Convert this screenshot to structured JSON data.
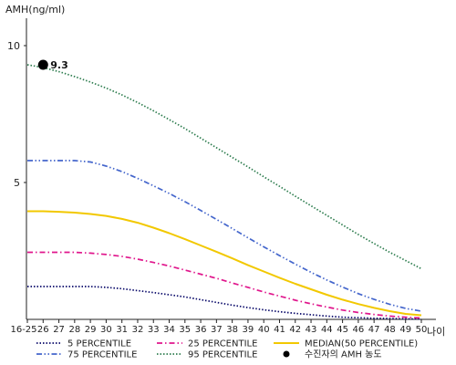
{
  "chart_data": {
    "type": "line",
    "ylabel": "AMH(ng/ml)",
    "xlabel": "나이",
    "ylim": [
      0,
      11
    ],
    "yticks": [
      5,
      10
    ],
    "grid": false,
    "legend_position": "bottom",
    "categories": [
      "16-25",
      "26",
      "27",
      "28",
      "29",
      "30",
      "31",
      "32",
      "33",
      "34",
      "35",
      "36",
      "37",
      "38",
      "39",
      "40",
      "41",
      "42",
      "43",
      "44",
      "45",
      "46",
      "47",
      "48",
      "49",
      "50"
    ],
    "series": [
      {
        "name": "5 PERCENTILE",
        "color": "#0a0a6a",
        "dash": "dotted",
        "values": [
          1.2,
          1.2,
          1.2,
          1.2,
          1.2,
          1.17,
          1.12,
          1.05,
          0.98,
          0.9,
          0.82,
          0.72,
          0.62,
          0.52,
          0.43,
          0.35,
          0.28,
          0.22,
          0.17,
          0.12,
          0.08,
          0.06,
          0.04,
          0.03,
          0.02,
          0.01
        ]
      },
      {
        "name": "25 PERCENTILE",
        "color": "#e0168c",
        "dash": "dashdot",
        "values": [
          2.45,
          2.45,
          2.45,
          2.45,
          2.42,
          2.37,
          2.3,
          2.2,
          2.08,
          1.95,
          1.8,
          1.65,
          1.5,
          1.33,
          1.17,
          1.0,
          0.85,
          0.7,
          0.57,
          0.45,
          0.34,
          0.25,
          0.18,
          0.12,
          0.08,
          0.05
        ]
      },
      {
        "name": "MEDIAN(50 PERCENTILE)",
        "color": "#f2c800",
        "dash": "solid",
        "values": [
          3.95,
          3.95,
          3.93,
          3.9,
          3.85,
          3.78,
          3.67,
          3.53,
          3.35,
          3.15,
          2.93,
          2.7,
          2.47,
          2.23,
          1.98,
          1.75,
          1.52,
          1.3,
          1.1,
          0.9,
          0.72,
          0.56,
          0.42,
          0.3,
          0.2,
          0.15
        ]
      },
      {
        "name": "75 PERCENTILE",
        "color": "#4466cc",
        "dash": "dashdotdot",
        "values": [
          5.8,
          5.8,
          5.8,
          5.8,
          5.75,
          5.6,
          5.4,
          5.15,
          4.88,
          4.6,
          4.3,
          3.98,
          3.65,
          3.32,
          2.98,
          2.65,
          2.33,
          2.02,
          1.72,
          1.44,
          1.18,
          0.94,
          0.73,
          0.55,
          0.4,
          0.3
        ]
      },
      {
        "name": "95 PERCENTILE",
        "color": "#2e7d4f",
        "dash": "dotted",
        "values": [
          9.3,
          9.2,
          9.05,
          8.87,
          8.67,
          8.45,
          8.2,
          7.92,
          7.62,
          7.3,
          6.97,
          6.62,
          6.27,
          5.92,
          5.57,
          5.21,
          4.86,
          4.5,
          4.15,
          3.8,
          3.45,
          3.1,
          2.77,
          2.45,
          2.15,
          1.85
        ]
      }
    ],
    "marker": {
      "label": "수진자의 AMH 농도",
      "x": "26",
      "y": 9.3,
      "value_label": "9.3",
      "color": "#000000"
    }
  }
}
